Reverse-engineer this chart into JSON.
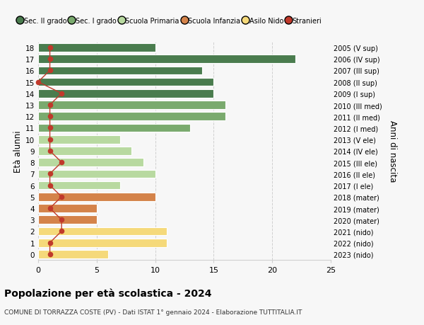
{
  "ages": [
    18,
    17,
    16,
    15,
    14,
    13,
    12,
    11,
    10,
    9,
    8,
    7,
    6,
    5,
    4,
    3,
    2,
    1,
    0
  ],
  "right_labels": [
    "2005 (V sup)",
    "2006 (IV sup)",
    "2007 (III sup)",
    "2008 (II sup)",
    "2009 (I sup)",
    "2010 (III med)",
    "2011 (II med)",
    "2012 (I med)",
    "2013 (V ele)",
    "2014 (IV ele)",
    "2015 (III ele)",
    "2016 (II ele)",
    "2017 (I ele)",
    "2018 (mater)",
    "2019 (mater)",
    "2020 (mater)",
    "2021 (nido)",
    "2022 (nido)",
    "2023 (nido)"
  ],
  "bar_values": [
    10,
    22,
    14,
    15,
    15,
    16,
    16,
    13,
    7,
    8,
    9,
    10,
    7,
    10,
    5,
    5,
    11,
    11,
    6
  ],
  "bar_colors": [
    "#4a7c4e",
    "#4a7c4e",
    "#4a7c4e",
    "#4a7c4e",
    "#4a7c4e",
    "#7aaa6e",
    "#7aaa6e",
    "#7aaa6e",
    "#b8d9a0",
    "#b8d9a0",
    "#b8d9a0",
    "#b8d9a0",
    "#b8d9a0",
    "#d4834a",
    "#d4834a",
    "#d4834a",
    "#f5d97a",
    "#f5d97a",
    "#f5d97a"
  ],
  "stranieri_values": [
    1,
    1,
    1,
    0,
    2,
    1,
    1,
    1,
    1,
    1,
    2,
    1,
    1,
    2,
    1,
    2,
    2,
    1,
    1
  ],
  "title": "Popolazione per età scolastica - 2024",
  "subtitle": "COMUNE DI TORRAZZA COSTE (PV) - Dati ISTAT 1° gennaio 2024 - Elaborazione TUTTITALIA.IT",
  "ylabel": "Età alunni",
  "ylabel_right": "Anni di nascita",
  "xlim": [
    0,
    25
  ],
  "legend_labels": [
    "Sec. II grado",
    "Sec. I grado",
    "Scuola Primaria",
    "Scuola Infanzia",
    "Asilo Nido",
    "Stranieri"
  ],
  "legend_colors": [
    "#4a7c4e",
    "#7aaa6e",
    "#b8d9a0",
    "#d4834a",
    "#f5d97a",
    "#c0392b"
  ],
  "stranieri_color": "#c0392b",
  "background_color": "#f7f7f7",
  "bar_height": 0.72,
  "grid_color": "#d0d0d0"
}
